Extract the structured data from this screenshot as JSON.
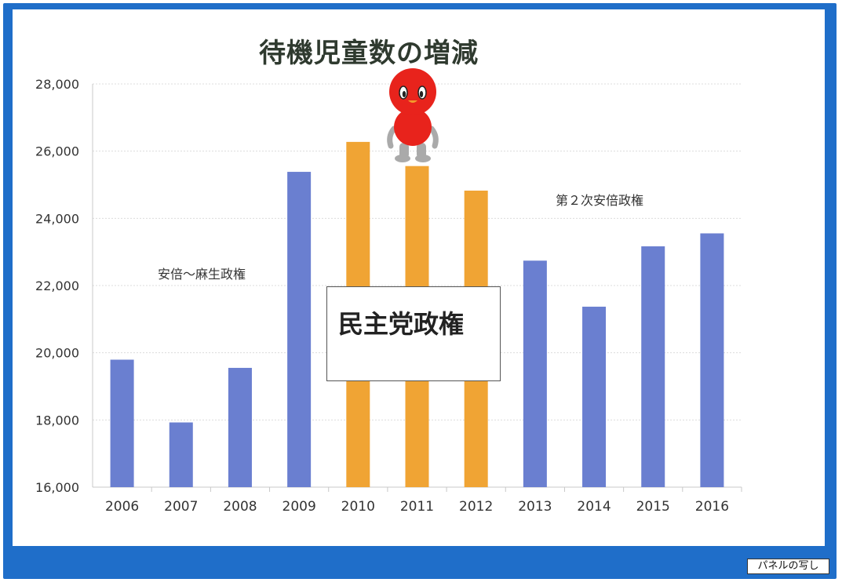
{
  "chart_data": {
    "type": "bar",
    "title": "待機児童数の増減",
    "categories": [
      "2006",
      "2007",
      "2008",
      "2009",
      "2010",
      "2011",
      "2012",
      "2013",
      "2014",
      "2015",
      "2016"
    ],
    "values": [
      19794,
      17926,
      19550,
      25384,
      26275,
      25556,
      24825,
      22741,
      21371,
      23167,
      23553
    ],
    "bar_colors": [
      "#6a7fd0",
      "#6a7fd0",
      "#6a7fd0",
      "#6a7fd0",
      "#f0a434",
      "#f0a434",
      "#f0a434",
      "#6a7fd0",
      "#6a7fd0",
      "#6a7fd0",
      "#6a7fd0"
    ],
    "ylim": [
      16000,
      28000
    ],
    "yticks": [
      "16,000",
      "18,000",
      "20,000",
      "22,000",
      "24,000",
      "26,000",
      "28,000"
    ],
    "grid": true,
    "xlabel": "",
    "ylabel": ""
  },
  "annotations": {
    "abe_aso": "安倍～麻生政権",
    "abe_second": "第２次安倍政権",
    "dpj": "民主党政権"
  },
  "corner_label": "パネルの写し",
  "colors": {
    "frame": "#1f6ec9",
    "blue_bar": "#6a7fd0",
    "orange_bar": "#f0a434",
    "mascot": "#e8231c"
  }
}
